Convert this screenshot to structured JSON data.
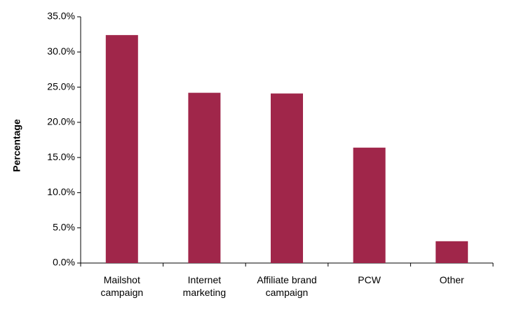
{
  "chart_data": {
    "type": "bar",
    "y_label": "Percentage",
    "categories": [
      "Mailshot campaign",
      "Internet marketing",
      "Affiliate brand campaign",
      "PCW",
      "Other"
    ],
    "values": [
      32.4,
      24.2,
      24.1,
      16.4,
      3.1
    ],
    "color": "#a0264a",
    "ylim": [
      0,
      35
    ],
    "yticks": [
      {
        "value": 0,
        "label": "0.0%"
      },
      {
        "value": 5,
        "label": "5.0%"
      },
      {
        "value": 10,
        "label": "10.0%"
      },
      {
        "value": 15,
        "label": "15.0%"
      },
      {
        "value": 20,
        "label": "20.0%"
      },
      {
        "value": 25,
        "label": "25.0%"
      },
      {
        "value": 30,
        "label": "30.0%"
      },
      {
        "value": 35,
        "label": "35.0%"
      }
    ]
  }
}
